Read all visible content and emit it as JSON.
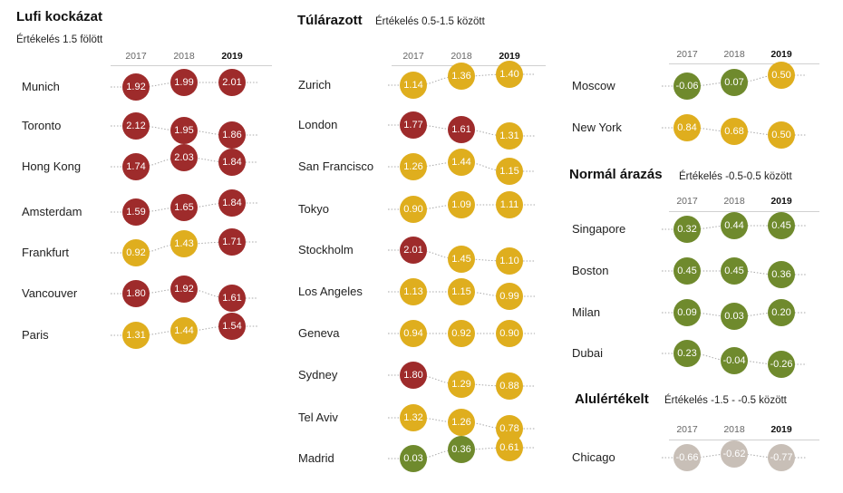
{
  "colors": {
    "lufi": "#9e2b2b",
    "over": "#dfae1e",
    "normal": "#6f8a2d",
    "under": "#c8bfb7"
  },
  "chart_data": [
    {
      "type": "table",
      "title": "Lufi kockázat",
      "subtitle": "Értékelés 1.5 fölött",
      "years": [
        "2017",
        "2018",
        "2019"
      ],
      "rows": [
        {
          "city": "Munich",
          "values": [
            1.92,
            1.99,
            2.01
          ],
          "labels": [
            "1.92",
            "1.99",
            "2.01"
          ],
          "cats": [
            "lufi",
            "lufi",
            "lufi"
          ]
        },
        {
          "city": "Toronto",
          "values": [
            2.12,
            1.95,
            1.86
          ],
          "labels": [
            "2.12",
            "1.95",
            "1.86"
          ],
          "cats": [
            "lufi",
            "lufi",
            "lufi"
          ]
        },
        {
          "city": "Hong Kong",
          "values": [
            1.74,
            2.03,
            1.84
          ],
          "labels": [
            "1.74",
            "2.03",
            "1.84"
          ],
          "cats": [
            "lufi",
            "lufi",
            "lufi"
          ]
        },
        {
          "city": "Amsterdam",
          "values": [
            1.59,
            1.65,
            1.84
          ],
          "labels": [
            "1.59",
            "1.65",
            "1.84"
          ],
          "cats": [
            "lufi",
            "lufi",
            "lufi"
          ]
        },
        {
          "city": "Frankfurt",
          "values": [
            0.92,
            1.43,
            1.71
          ],
          "labels": [
            "0.92",
            "1.43",
            "1.71"
          ],
          "cats": [
            "over",
            "over",
            "lufi"
          ]
        },
        {
          "city": "Vancouver",
          "values": [
            1.8,
            1.92,
            1.61
          ],
          "labels": [
            "1.80",
            "1.92",
            "1.61"
          ],
          "cats": [
            "lufi",
            "lufi",
            "lufi"
          ]
        },
        {
          "city": "Paris",
          "values": [
            1.31,
            1.44,
            1.54
          ],
          "labels": [
            "1.31",
            "1.44",
            "1.54"
          ],
          "cats": [
            "over",
            "over",
            "lufi"
          ]
        }
      ]
    },
    {
      "type": "table",
      "title": "Túlárazott",
      "subtitle": "Értékelés 0.5-1.5 között",
      "years": [
        "2017",
        "2018",
        "2019"
      ],
      "rows": [
        {
          "city": "Zurich",
          "values": [
            1.14,
            1.36,
            1.4
          ],
          "labels": [
            "1.14",
            "1.36",
            "1.40"
          ],
          "cats": [
            "over",
            "over",
            "over"
          ]
        },
        {
          "city": "London",
          "values": [
            1.77,
            1.61,
            1.31
          ],
          "labels": [
            "1.77",
            "1.61",
            "1.31"
          ],
          "cats": [
            "lufi",
            "lufi",
            "over"
          ]
        },
        {
          "city": "San Francisco",
          "values": [
            1.26,
            1.44,
            1.15
          ],
          "labels": [
            "1.26",
            "1.44",
            "1.15"
          ],
          "cats": [
            "over",
            "over",
            "over"
          ]
        },
        {
          "city": "Tokyo",
          "values": [
            0.9,
            1.09,
            1.11
          ],
          "labels": [
            "0.90",
            "1.09",
            "1.11"
          ],
          "cats": [
            "over",
            "over",
            "over"
          ]
        },
        {
          "city": "Stockholm",
          "values": [
            2.01,
            1.45,
            1.1
          ],
          "labels": [
            "2.01",
            "1.45",
            "1.10"
          ],
          "cats": [
            "lufi",
            "over",
            "over"
          ]
        },
        {
          "city": "Los Angeles",
          "values": [
            1.13,
            1.15,
            0.99
          ],
          "labels": [
            "1.13",
            "1.15",
            "0.99"
          ],
          "cats": [
            "over",
            "over",
            "over"
          ]
        },
        {
          "city": "Geneva",
          "values": [
            0.94,
            0.92,
            0.9
          ],
          "labels": [
            "0.94",
            "0.92",
            "0.90"
          ],
          "cats": [
            "over",
            "over",
            "over"
          ]
        },
        {
          "city": "Sydney",
          "values": [
            1.8,
            1.29,
            0.88
          ],
          "labels": [
            "1.80",
            "1.29",
            "0.88"
          ],
          "cats": [
            "lufi",
            "over",
            "over"
          ]
        },
        {
          "city": "Tel Aviv",
          "values": [
            1.32,
            1.26,
            0.78
          ],
          "labels": [
            "1.32",
            "1.26",
            "0.78"
          ],
          "cats": [
            "over",
            "over",
            "over"
          ]
        },
        {
          "city": "Madrid",
          "values": [
            0.03,
            0.36,
            0.61
          ],
          "labels": [
            "0.03",
            "0.36",
            "0.61"
          ],
          "cats": [
            "normal",
            "normal",
            "over"
          ]
        }
      ]
    },
    {
      "type": "table",
      "title": "",
      "subtitle": "",
      "years": [
        "2017",
        "2018",
        "2019"
      ],
      "rows": [
        {
          "city": "Moscow",
          "values": [
            -0.06,
            0.07,
            0.5
          ],
          "labels": [
            "-0.06",
            "0.07",
            "0.50"
          ],
          "cats": [
            "normal",
            "normal",
            "over"
          ]
        },
        {
          "city": "New York",
          "values": [
            0.84,
            0.68,
            0.5
          ],
          "labels": [
            "0.84",
            "0.68",
            "0.50"
          ],
          "cats": [
            "over",
            "over",
            "over"
          ]
        }
      ]
    },
    {
      "type": "table",
      "title": "Normál árazás",
      "subtitle": "Értékelés -0.5-0.5 között",
      "years": [
        "2017",
        "2018",
        "2019"
      ],
      "rows": [
        {
          "city": "Singapore",
          "values": [
            0.32,
            0.44,
            0.45
          ],
          "labels": [
            "0.32",
            "0.44",
            "0.45"
          ],
          "cats": [
            "normal",
            "normal",
            "normal"
          ]
        },
        {
          "city": "Boston",
          "values": [
            0.45,
            0.45,
            0.36
          ],
          "labels": [
            "0.45",
            "0.45",
            "0.36"
          ],
          "cats": [
            "normal",
            "normal",
            "normal"
          ]
        },
        {
          "city": "Milan",
          "values": [
            0.09,
            0.03,
            0.2
          ],
          "labels": [
            "0.09",
            "0.03",
            "0.20"
          ],
          "cats": [
            "normal",
            "normal",
            "normal"
          ]
        },
        {
          "city": "Dubai",
          "values": [
            0.23,
            -0.04,
            -0.26
          ],
          "labels": [
            "0.23",
            "-0.04",
            "-0.26"
          ],
          "cats": [
            "normal",
            "normal",
            "normal"
          ]
        }
      ]
    },
    {
      "type": "table",
      "title": "Alulértékelt",
      "subtitle": "Értékelés -1.5 - -0.5 között",
      "years": [
        "2017",
        "2018",
        "2019"
      ],
      "rows": [
        {
          "city": "Chicago",
          "values": [
            -0.66,
            -0.62,
            -0.77
          ],
          "labels": [
            "-0.66",
            "-0.62",
            "-0.77"
          ],
          "cats": [
            "under",
            "under",
            "under"
          ]
        }
      ]
    }
  ]
}
